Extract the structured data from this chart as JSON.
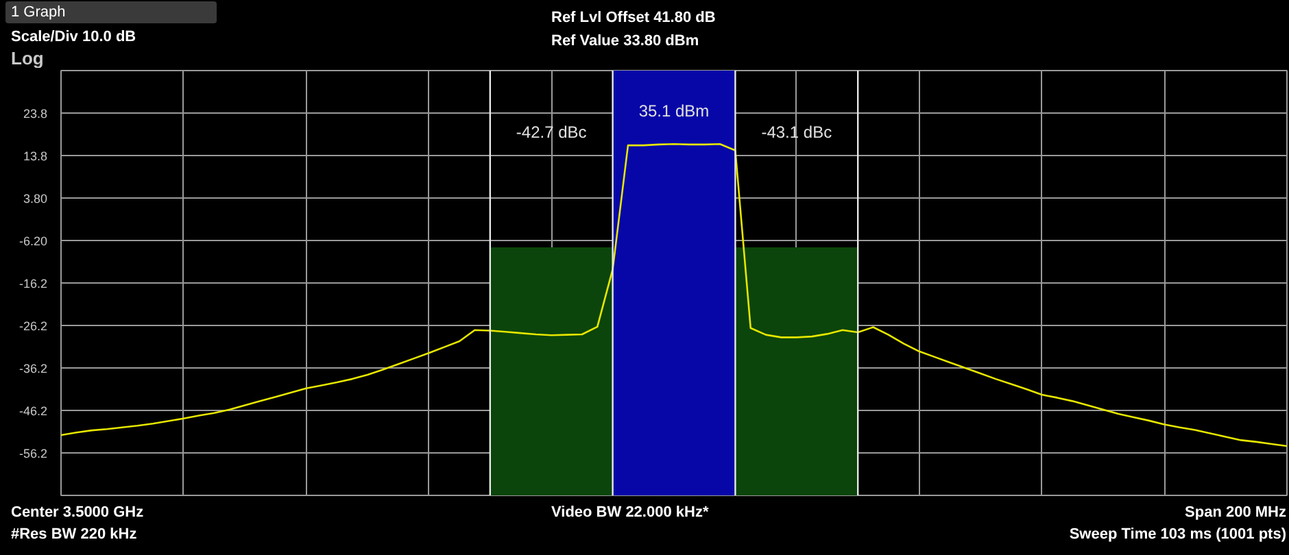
{
  "chart_data": {
    "type": "line",
    "title": "Ref Lvl Offset 41.80 dB",
    "subtitle": "Ref Value 33.80 dBm",
    "ylabel": "Log",
    "annotations": [
      "1 Graph",
      "Scale/Div 10.0 dB",
      "Center 3.5000 GHz",
      "#Res BW 220 kHz",
      "Video BW 22.000 kHz*",
      "Span 200 MHz",
      "Sweep Time 103 ms (1001 pts)",
      "-42.7 dBc",
      "35.1 dBm",
      "-43.1 dBc"
    ],
    "categories": [
      null,
      null,
      null,
      null,
      null,
      null,
      null,
      null,
      null,
      null,
      null,
      null,
      null,
      null,
      null,
      null,
      null,
      null,
      null,
      null,
      null,
      null,
      null,
      null,
      null,
      null,
      null,
      null,
      null,
      null,
      null,
      null,
      null,
      null,
      null,
      null,
      null,
      null,
      null,
      null,
      null,
      null,
      null,
      null,
      null,
      null,
      null,
      null,
      null,
      null,
      null,
      null,
      null,
      null,
      null,
      null,
      null,
      null,
      null,
      null,
      null,
      null,
      null,
      null,
      null,
      null,
      null,
      null,
      null,
      null,
      null,
      null,
      null,
      null,
      null,
      null,
      null,
      null,
      null,
      null,
      null
    ],
    "series": [
      {
        "color": "#e6e600",
        "values": [
          -52.0,
          -51.4,
          -50.9,
          -50.6,
          -50.2,
          -49.8,
          -49.3,
          -48.7,
          -48.1,
          -47.4,
          -46.8,
          -46.0,
          -45.0,
          -44.0,
          -43.0,
          -42.0,
          -41.0,
          -40.3,
          -39.6,
          -38.8,
          -37.8,
          -36.6,
          -35.3,
          -34.0,
          -32.7,
          -31.3,
          -29.9,
          -27.3,
          -27.4,
          -27.7,
          -28.0,
          -28.3,
          -28.5,
          -28.4,
          -28.3,
          -26.5,
          -13.0,
          16.2,
          16.2,
          16.4,
          16.5,
          16.4,
          16.4,
          16.5,
          15.0,
          -26.8,
          -28.4,
          -29.0,
          -29.0,
          -28.8,
          -28.2,
          -27.3,
          -27.8,
          -26.6,
          -28.4,
          -30.5,
          -32.3,
          -33.6,
          -34.9,
          -36.2,
          -37.5,
          -38.8,
          -40.0,
          -41.2,
          -42.5,
          -43.2,
          -44.0,
          -45.0,
          -46.0,
          -47.0,
          -47.8,
          -48.6,
          -49.5,
          -50.2,
          -50.8,
          -51.6,
          -52.4,
          -53.2,
          -53.6,
          -54.1,
          -54.6
        ]
      }
    ],
    "ylim": [
      -66.2,
      33.8
    ],
    "yticks": [
      {
        "value": 33.8,
        "label": null
      },
      23.8,
      13.8,
      {
        "value": 3.8,
        "label": "3.80"
      },
      {
        "value": -6.2,
        "label": "-6.20"
      },
      -16.2,
      -26.2,
      -36.2,
      -46.2,
      -56.2,
      {
        "value": -66.2,
        "label": null
      }
    ],
    "grid": true,
    "marker": "none"
  }
}
